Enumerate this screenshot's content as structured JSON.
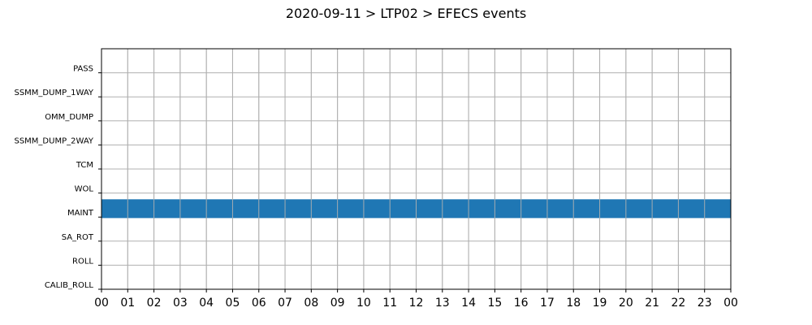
{
  "chart_data": {
    "type": "timeline",
    "title": "2020-09-11 > LTP02 > EFECS events",
    "x_unit": "hour",
    "x_ticks": [
      "00",
      "01",
      "02",
      "03",
      "04",
      "05",
      "06",
      "07",
      "08",
      "09",
      "10",
      "11",
      "12",
      "13",
      "14",
      "15",
      "16",
      "17",
      "18",
      "19",
      "20",
      "21",
      "22",
      "23",
      "00"
    ],
    "xlim": [
      0,
      24
    ],
    "categories": [
      "PASS",
      "SSMM_DUMP_1WAY",
      "OMM_DUMP",
      "SSMM_DUMP_2WAY",
      "TCM",
      "WOL",
      "MAINT",
      "SA_ROT",
      "ROLL",
      "CALIB_ROLL"
    ],
    "events": [
      {
        "category": "MAINT",
        "start": 0,
        "end": 24
      }
    ],
    "grid": true,
    "colors": {
      "bar": "#1f77b4",
      "grid": "#b0b0b0",
      "axis": "#000000"
    }
  }
}
